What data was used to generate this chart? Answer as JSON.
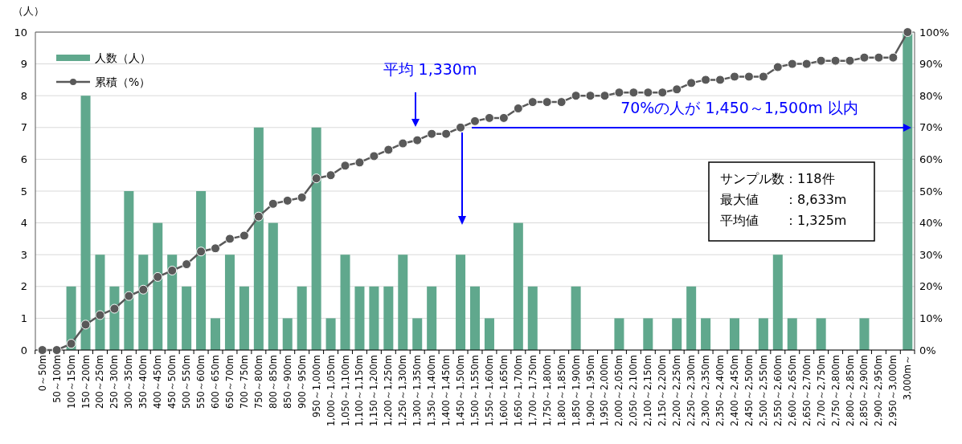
{
  "chart_data": {
    "type": "bar",
    "ylabel": "（人）",
    "categories": [
      "0～50m",
      "50～100m",
      "100～150m",
      "150～200m",
      "200～250m",
      "250～300m",
      "300～350m",
      "350～400m",
      "400～450m",
      "450～500m",
      "500～550m",
      "550～600m",
      "600～650m",
      "650～700m",
      "700～750m",
      "750～800m",
      "800～850m",
      "850～900m",
      "900～950m",
      "950～1,000m",
      "1,000～1,050m",
      "1,050～1,100m",
      "1,100～1,150m",
      "1,150～1,200m",
      "1,200～1,250m",
      "1,250～1,300m",
      "1,300～1,350m",
      "1,350～1,400m",
      "1,400～1,450m",
      "1,450～1,500m",
      "1,500～1,550m",
      "1,550～1,600m",
      "1,600～1,650m",
      "1,650～1,700m",
      "1,700～1,750m",
      "1,750～1,800m",
      "1,800～1,850m",
      "1,850～1,900m",
      "1,900～1,950m",
      "1,950～2,000m",
      "2,000～2,050m",
      "2,050～2,100m",
      "2,100～2,150m",
      "2,150～2,200m",
      "2,200～2,250m",
      "2,250～2,300m",
      "2,300～2,350m",
      "2,350～2,400m",
      "2,400～2,450m",
      "2,450～2,500m",
      "2,500～2,550m",
      "2,550～2,600m",
      "2,600～2,650m",
      "2,650～2,700m",
      "2,700～2,750m",
      "2,750～2,800m",
      "2,800～2,850m",
      "2,850～2,900m",
      "2,900～2,950m",
      "2,950～3,000m",
      "3,000m～"
    ],
    "series": [
      {
        "name": "人数（人）",
        "color": "#60a88d",
        "values": [
          0,
          0,
          2,
          8,
          3,
          2,
          5,
          3,
          4,
          3,
          2,
          5,
          1,
          3,
          2,
          7,
          4,
          1,
          2,
          7,
          1,
          3,
          2,
          2,
          2,
          3,
          1,
          2,
          0,
          3,
          2,
          1,
          0,
          4,
          2,
          0,
          0,
          2,
          0,
          0,
          1,
          0,
          1,
          0,
          1,
          2,
          1,
          0,
          1,
          0,
          1,
          3,
          1,
          0,
          1,
          0,
          0,
          1,
          0,
          0,
          10
        ]
      },
      {
        "name": "累積（%）",
        "type": "line",
        "axis": "y2",
        "color": "#595959",
        "values": [
          0,
          0,
          2,
          8,
          11,
          13,
          17,
          19,
          23,
          25,
          27,
          31,
          32,
          35,
          36,
          42,
          46,
          47,
          48,
          54,
          55,
          58,
          59,
          61,
          63,
          65,
          66,
          68,
          68,
          70,
          72,
          73,
          73,
          76,
          78,
          78,
          78,
          80,
          80,
          80,
          81,
          81,
          81,
          81,
          82,
          84,
          85,
          85,
          86,
          86,
          86,
          89,
          90,
          90,
          91,
          91,
          91,
          92,
          92,
          92,
          100
        ]
      }
    ],
    "ylim": [
      0,
      10
    ],
    "yticks": [
      0,
      1,
      2,
      3,
      4,
      5,
      6,
      7,
      8,
      9,
      10
    ],
    "y2lim": [
      0,
      100
    ],
    "y2ticks": [
      {
        "value": 0,
        "label": "0%"
      },
      {
        "value": 10,
        "label": "10%"
      },
      {
        "value": 20,
        "label": "20%"
      },
      {
        "value": 30,
        "label": "30%"
      },
      {
        "value": 40,
        "label": "40%"
      },
      {
        "value": 50,
        "label": "50%"
      },
      {
        "value": 60,
        "label": "60%"
      },
      {
        "value": 70,
        "label": "70%"
      },
      {
        "value": 80,
        "label": "80%"
      },
      {
        "value": 90,
        "label": "90%"
      },
      {
        "value": 100,
        "label": "100%"
      }
    ],
    "grid": "y",
    "legend": "top left",
    "marker": "circle",
    "line_style": "solid",
    "annotations": [
      "平均 1,330m",
      "70%の人が 1,450～1,500m 以内",
      "サンプル数：118件",
      "最大値　　：8,633m",
      "平均値　　：1,325m"
    ]
  }
}
